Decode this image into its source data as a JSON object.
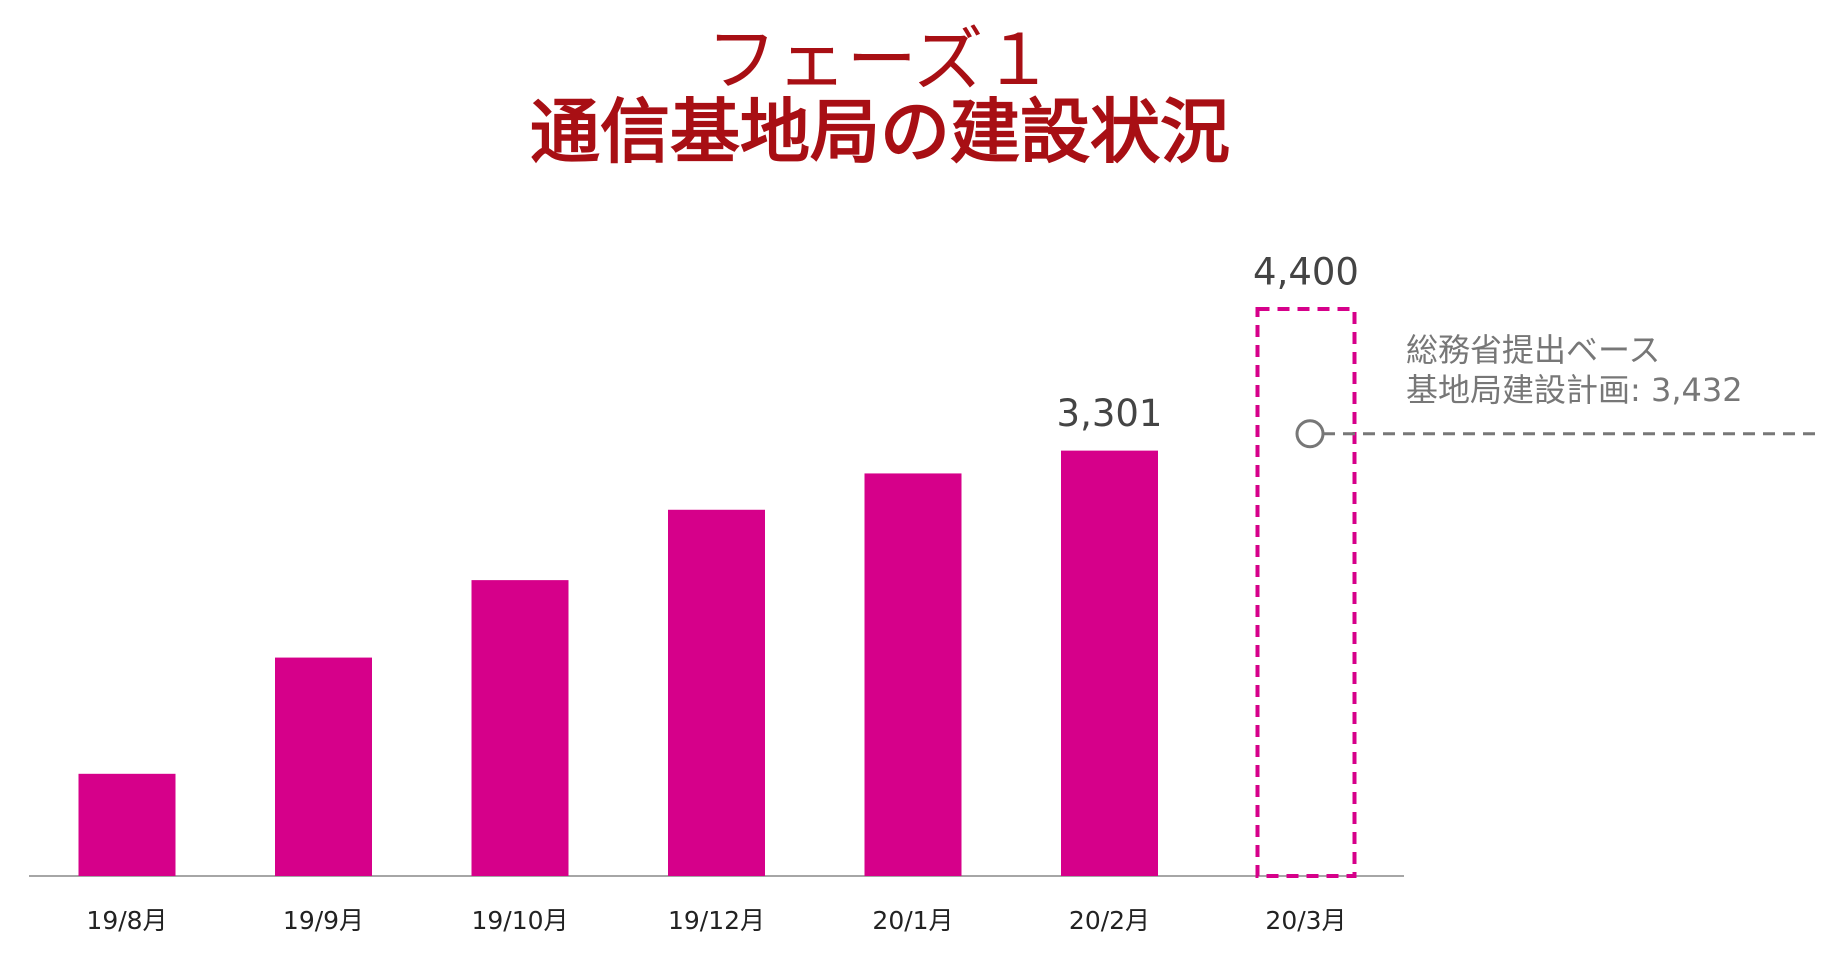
{
  "chart_data": {
    "type": "bar",
    "title_lines": [
      "フェーズ１",
      "通信基地局の建設状況"
    ],
    "categories": [
      "19/8月",
      "19/9月",
      "19/10月",
      "19/12月",
      "20/1月",
      "20/2月",
      "20/3月"
    ],
    "values": [
      793,
      1695,
      2296,
      2842,
      3124,
      3301,
      4400
    ],
    "value_labels": [
      null,
      null,
      null,
      null,
      null,
      "3,301",
      "4,400"
    ],
    "bar_styles": [
      "solid",
      "solid",
      "solid",
      "solid",
      "solid",
      "solid",
      "dashed"
    ],
    "color": "#d6008a",
    "title_color": "#a80f14",
    "reference": {
      "value": 3432,
      "label_lines": [
        "総務省提出ベース",
        "基地局建設計画: 3,432"
      ],
      "color": "#777777"
    }
  }
}
